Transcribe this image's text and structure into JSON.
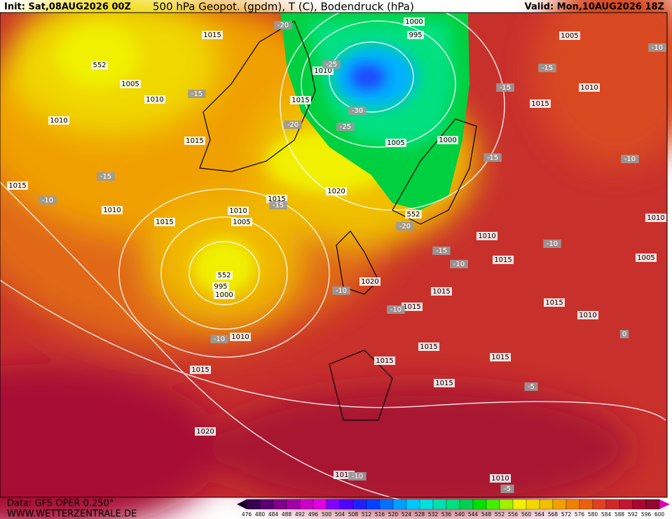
{
  "header": {
    "init": "Init: Sat,08AUG2026 00Z",
    "title": "500 hPa Geopot. (gpdm), T (C), Bodendruck (hPa)",
    "valid": "Valid: Mon,10AUG2026 18Z"
  },
  "footer": {
    "data": "Data: GFS OPER 0.250°",
    "site": "WWW.WETTERZENTRALE.DE"
  },
  "colorbar": {
    "labels": [
      476,
      480,
      484,
      488,
      492,
      496,
      500,
      504,
      508,
      512,
      516,
      520,
      524,
      528,
      532,
      536,
      540,
      544,
      548,
      552,
      556,
      560,
      564,
      568,
      572,
      576,
      580,
      584,
      588,
      592,
      596,
      600
    ],
    "colors": [
      "#3a0050",
      "#5a0070",
      "#80008a",
      "#a000a8",
      "#c800c8",
      "#e000e0",
      "#8000ff",
      "#5000ff",
      "#2020ff",
      "#0040ff",
      "#0070ff",
      "#00a0ff",
      "#00c8ff",
      "#00e0e0",
      "#00e0b0",
      "#00e080",
      "#00d050",
      "#00e000",
      "#40f000",
      "#a0f000",
      "#f0f000",
      "#f0d800",
      "#f0c000",
      "#f0a000",
      "#f08000",
      "#e86010",
      "#e04020",
      "#d02828",
      "#c01830",
      "#a80830",
      "#900830"
    ]
  },
  "map": {
    "isobar_labels": [
      "1015",
      "1005",
      "1010",
      "1010",
      "1015",
      "1015",
      "1010",
      "1015",
      "1010",
      "1005",
      "1015",
      "1020",
      "1015",
      "1010",
      "1000",
      "995",
      "1005",
      "1000",
      "1010",
      "1015",
      "1015",
      "1015",
      "1015",
      "1010",
      "1015",
      "1015",
      "1015",
      "1015",
      "1010",
      "1015",
      "1020",
      "1015",
      "1010",
      "1005",
      "1010",
      "1015",
      "1010",
      "1005",
      "1020",
      "995",
      "1000",
      "552",
      "552",
      "552"
    ],
    "temperature_labels": [
      "-20",
      "-25",
      "-30",
      "-25",
      "-20",
      "-15",
      "-15",
      "-10",
      "-15",
      "-20",
      "-15",
      "-10",
      "-10",
      "-10",
      "-10",
      "-15",
      "-15",
      "-10",
      "-15",
      "-10",
      "-10",
      "-5",
      "-5",
      "0",
      "-10"
    ]
  }
}
